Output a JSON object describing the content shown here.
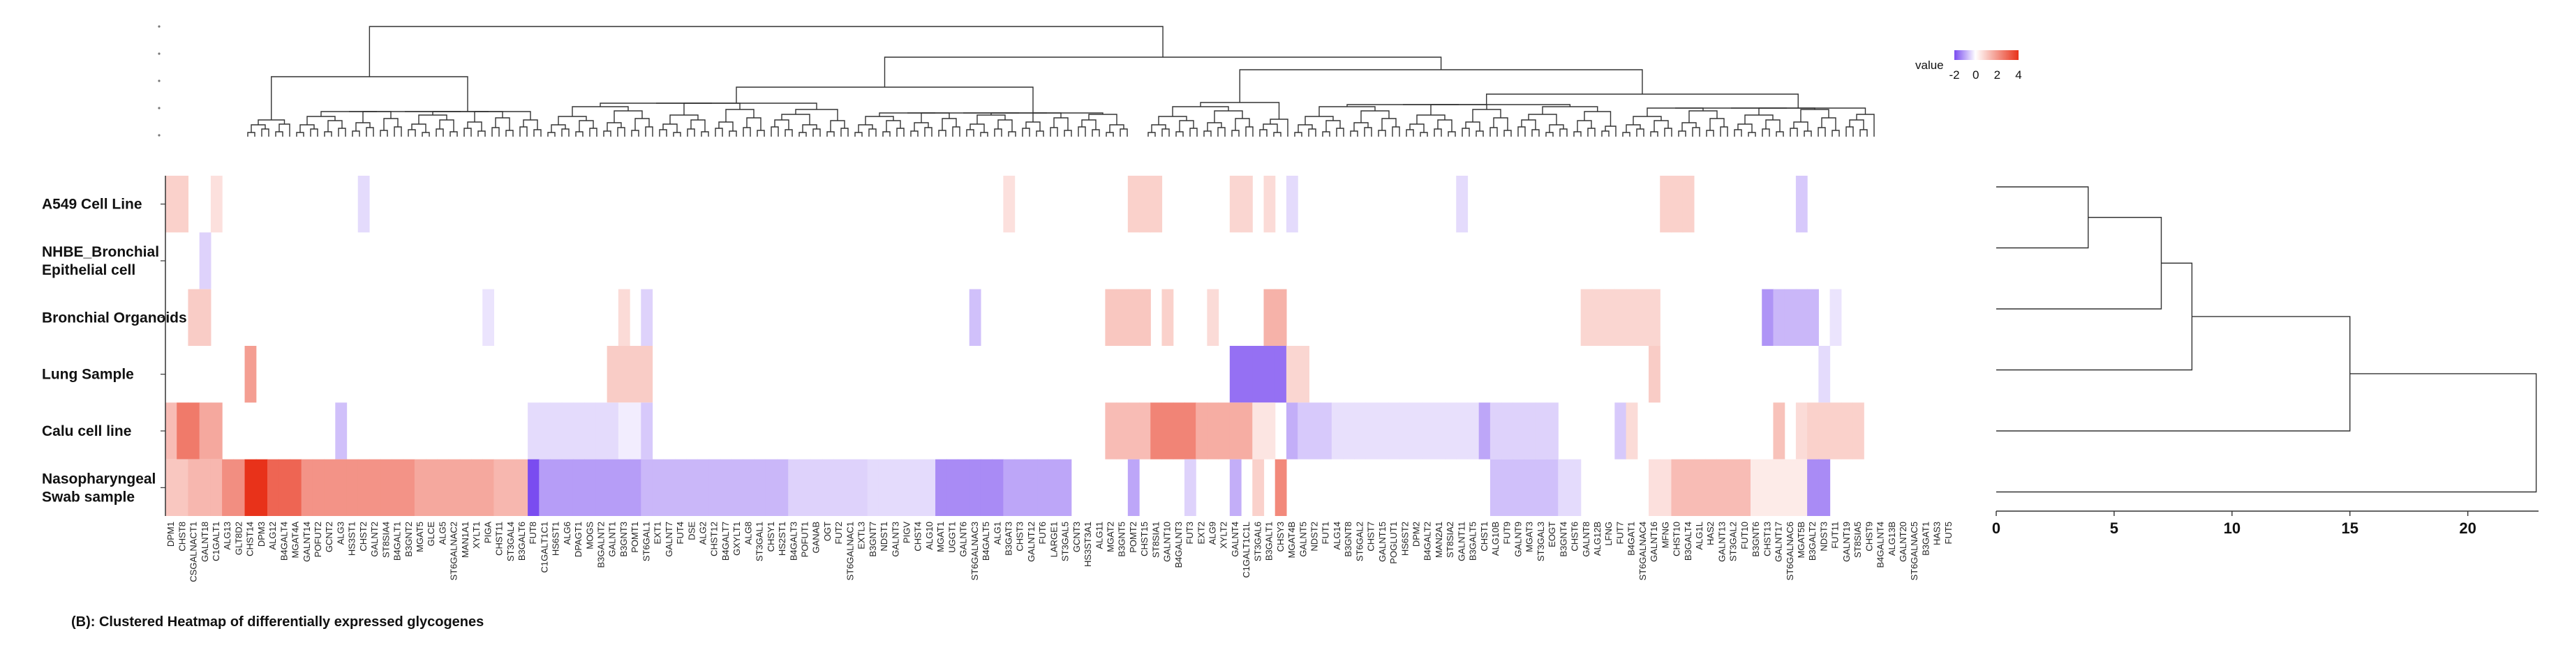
{
  "chart_data": {
    "type": "heatmap",
    "caption": "(B): Clustered Heatmap of differentially expressed glycogenes",
    "rows": [
      "A549 Cell Line",
      "NHBE_Bronchial Epithelial cell",
      "Bronchial Organoids",
      "Lung Sample",
      "Calu cell line",
      "Nasopharyngeal Swab sample"
    ],
    "row_label_lines": [
      [
        "A549 Cell Line"
      ],
      [
        "NHBE_Bronchial",
        "Epithelial cell"
      ],
      [
        "Bronchial Organoids"
      ],
      [
        "Lung Sample"
      ],
      [
        "Calu cell line"
      ],
      [
        "Nasopharyngeal",
        "Swab sample"
      ]
    ],
    "column_labels": [
      "DPM1",
      "CHST8",
      "CSGALNACT1",
      "GALNT18",
      "C1GALT1",
      "ALG13",
      "GLT8D2",
      "CHST14",
      "DPM3",
      "ALG12",
      "B4GALT4",
      "MGAT4A",
      "GALNT14",
      "POFUT2",
      "GCNT2",
      "ALG3",
      "HS3ST1",
      "CHST2",
      "GALNT2",
      "ST8SIA4",
      "B4GALT1",
      "B3GNT2",
      "MGAT5",
      "GLCE",
      "ALG5",
      "ST6GALNAC2",
      "MAN1A1",
      "XYLT1",
      "PIGA",
      "CHST11",
      "ST3GAL4",
      "B3GALT6",
      "FUT8",
      "C1GALT1C1",
      "HS6ST1",
      "ALG6",
      "DPAGT1",
      "MOGS",
      "B3GALNT2",
      "GALNT1",
      "B3GNT3",
      "POMT1",
      "ST6GAL1",
      "EXT1",
      "GALNT7",
      "FUT4",
      "DSE",
      "ALG2",
      "CHST12",
      "B4GALT7",
      "GXYLT1",
      "ALG8",
      "ST3GAL1",
      "CHSY1",
      "HS2ST1",
      "B4GALT3",
      "POFUT1",
      "GANAB",
      "OGT",
      "FUT2",
      "ST6GALNAC1",
      "EXTL3",
      "B3GNT7",
      "NDST1",
      "GALNT3",
      "PIGV",
      "CHST4",
      "ALG10",
      "MGAT1",
      "UGGT1",
      "GALNT6",
      "ST6GALNAC3",
      "B4GALT5",
      "ALG1",
      "B3GAT3",
      "CHST3",
      "GALNT12",
      "FUT6",
      "LARGE1",
      "ST3GAL5",
      "GCNT3",
      "HS3ST3A1",
      "ALG11",
      "MGAT2",
      "B3GNT5",
      "POMT2",
      "CHST15",
      "ST8SIA1",
      "GALNT10",
      "B4GALNT3",
      "FUT3",
      "EXT2",
      "ALG9",
      "XYLT2",
      "GALNT4",
      "C1GALT1C1L",
      "ST3GAL6",
      "B3GALT1",
      "CHSY3",
      "MGAT4B",
      "GALNT5",
      "NDST2",
      "FUT1",
      "ALG14",
      "B3GNT8",
      "ST6GAL2",
      "CHST7",
      "GALNT15",
      "POGLUT1",
      "HS6ST2",
      "DPM2",
      "B4GALT2",
      "MAN2A1",
      "ST8SIA2",
      "GALNT11",
      "B3GALT5",
      "CHST1",
      "ALG10B",
      "FUT9",
      "GALNT9",
      "MGAT3",
      "ST3GAL3",
      "EOGT",
      "B3GNT4",
      "CHST6",
      "GALNT8",
      "ALG12B",
      "LFNG",
      "FUT7",
      "B4GAT1",
      "ST6GALNAC4",
      "GALNT16",
      "MFNG",
      "CHST10",
      "B3GALT4",
      "ALG1L",
      "HAS2",
      "GALNT13",
      "ST3GAL2",
      "FUT10",
      "B3GNT6",
      "CHST13",
      "GALNT17",
      "ST6GALNAC6",
      "MGAT5B",
      "B3GALT2",
      "NDST3",
      "FUT11",
      "GALNT19",
      "ST8SIA5",
      "CHST9",
      "B4GALNT4",
      "ALG13B",
      "GALNT20",
      "ST6GALNAC5",
      "B3GAT1",
      "HAS3",
      "FUT5"
    ],
    "col_order_note": "",
    "values": "see script",
    "color_scale": {
      "label": "value",
      "min": -2,
      "max": 4,
      "ticks": [
        "-2",
        "0",
        "2",
        "4"
      ],
      "low_color": "#7a4cf0",
      "mid_color": "#ffffff",
      "high_color": "#e8321a"
    },
    "row_dendrogram_axis": {
      "ticks": [
        "0",
        "5",
        "10",
        "15",
        "20"
      ],
      "min": 0,
      "max": 23
    }
  }
}
